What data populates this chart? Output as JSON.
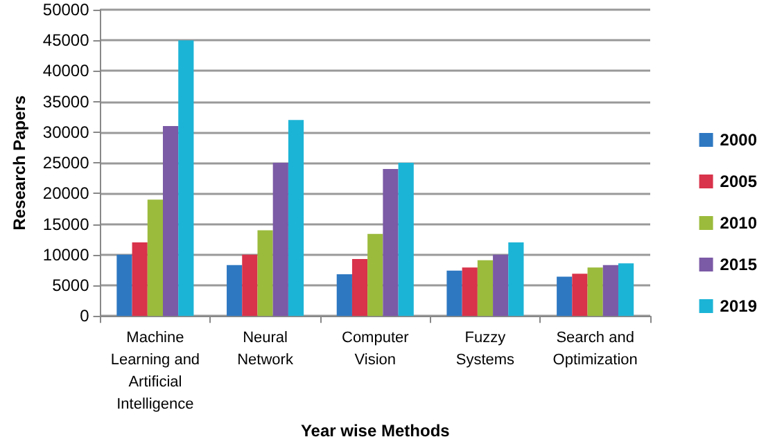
{
  "chart_data": {
    "type": "bar",
    "xlabel": "Year wise Methods",
    "ylabel": "Research Papers",
    "categories": [
      "Machine Learning and Artificial Intelligence",
      "Neural Network",
      "Computer Vision",
      "Fuzzy Systems",
      "Search and Optimization"
    ],
    "series": [
      {
        "name": "2000",
        "color": "#2e78c2",
        "values": [
          10000,
          8300,
          6800,
          7400,
          6400
        ]
      },
      {
        "name": "2005",
        "color": "#d8334a",
        "values": [
          12000,
          10000,
          9300,
          7900,
          6900
        ]
      },
      {
        "name": "2010",
        "color": "#9bbb3c",
        "values": [
          19000,
          14000,
          13400,
          9100,
          7900
        ]
      },
      {
        "name": "2015",
        "color": "#7b5aa6",
        "values": [
          31000,
          25000,
          24000,
          10000,
          8300
        ]
      },
      {
        "name": "2019",
        "color": "#1cb4d6",
        "values": [
          45000,
          32000,
          25000,
          12000,
          8600
        ]
      }
    ],
    "ylim": [
      0,
      50000
    ],
    "yticks": [
      0,
      5000,
      10000,
      15000,
      20000,
      25000,
      30000,
      35000,
      40000,
      45000,
      50000
    ],
    "grid": "y",
    "legend": "right"
  }
}
